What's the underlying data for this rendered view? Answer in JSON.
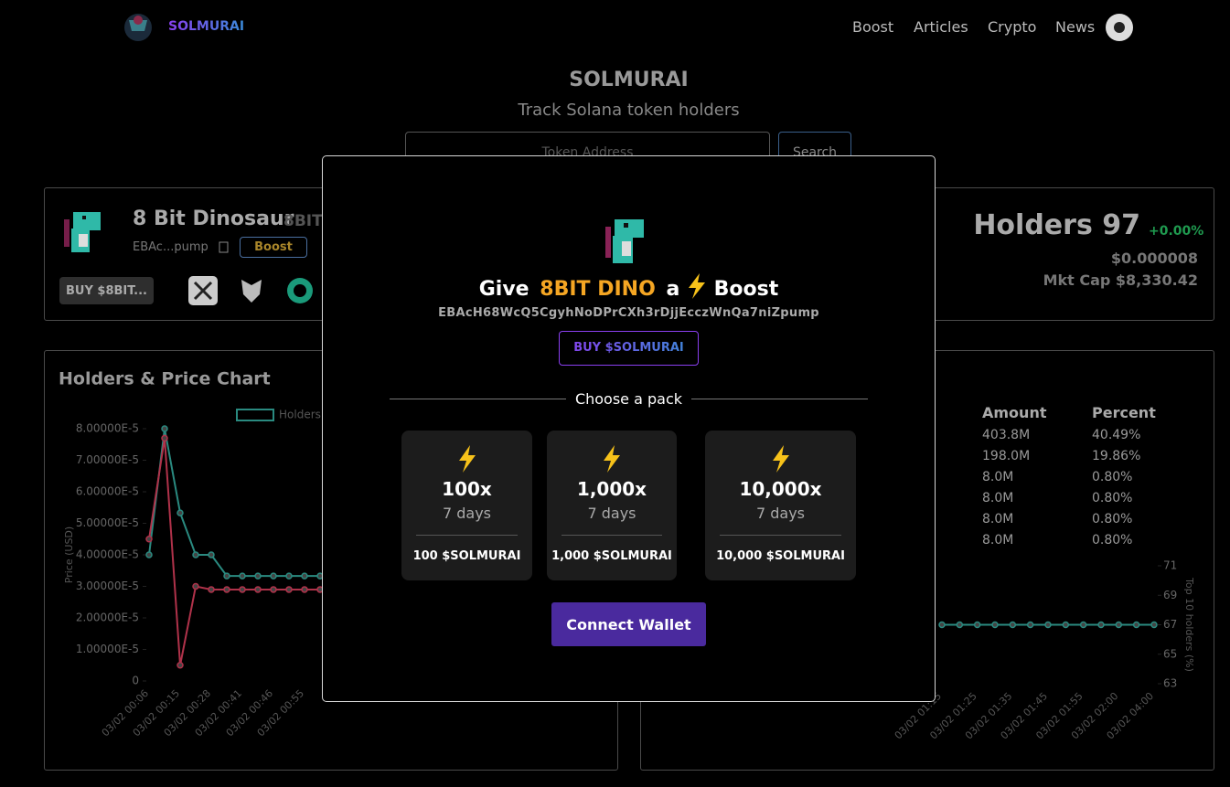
{
  "nav": {
    "brand": "SOLMURAI",
    "links": [
      "Boost",
      "Articles",
      "Crypto",
      "News"
    ]
  },
  "hero": {
    "title": "SOLMURAI",
    "subtitle": "Track Solana token holders",
    "input_placeholder": "Token Address",
    "search_button": "Search"
  },
  "token": {
    "name": "8 Bit Dinosaur",
    "symbol": "8BIT",
    "address": "EBAc...pump",
    "boost_button": "Boost",
    "buy_button": "BUY $8BIT..."
  },
  "stats": {
    "holders": "Holders 97",
    "change": "+0.00%",
    "price": "$0.000008",
    "market_cap": "Mkt Cap $8,330.42"
  },
  "holders_table": {
    "columns": [
      "Amount",
      "Percent"
    ],
    "rows": [
      [
        "403.8M",
        "40.49%"
      ],
      [
        "198.0M",
        "19.86%"
      ],
      [
        "8.0M",
        "0.80%"
      ],
      [
        "8.0M",
        "0.80%"
      ],
      [
        "8.0M",
        "0.80%"
      ],
      [
        "8.0M",
        "0.80%"
      ]
    ]
  },
  "chart_data": [
    {
      "type": "line",
      "title": "Holders & Price Chart",
      "y_label": "Price (USD)",
      "categories": [
        "03/02 00:06",
        null,
        "03/02 00:15",
        null,
        "03/02 00:28",
        null,
        "03/02 00:41",
        null,
        "03/02 00:46",
        null,
        "03/02 00:55",
        null
      ],
      "series": [
        {
          "name": "Holders",
          "color": "#2a8a80",
          "values": [
            4e-05,
            8e-05,
            5.33e-05,
            4e-05,
            4e-05,
            3.33e-05,
            3.33e-05,
            3.33e-05,
            3.33e-05,
            3.33e-05,
            3.33e-05,
            3.33e-05
          ]
        },
        {
          "color": "#b0324a",
          "values": [
            4.5e-05,
            7.7e-05,
            5e-06,
            3e-05,
            2.9e-05,
            2.9e-05,
            2.9e-05,
            2.9e-05,
            2.9e-05,
            2.9e-05,
            2.9e-05,
            2.9e-05
          ]
        }
      ],
      "ylim": [
        0,
        8e-05
      ],
      "yticks": [
        0,
        {
          "value": 1e-05,
          "label": "1.00000E-5"
        },
        {
          "value": 2e-05,
          "label": "2.00000E-5"
        },
        {
          "value": 3e-05,
          "label": "3.00000E-5"
        },
        {
          "value": 4e-05,
          "label": "4.00000E-5"
        },
        {
          "value": 5e-05,
          "label": "5.00000E-5"
        },
        {
          "value": 6e-05,
          "label": "6.00000E-5"
        },
        {
          "value": 7e-05,
          "label": "7.00000E-5"
        },
        {
          "value": 8e-05,
          "label": "8.00000E-5"
        }
      ]
    },
    {
      "type": "line",
      "y2_label": "Top 10 holders (%)",
      "categories": [
        "03/02 01:15",
        null,
        "03/02 01:25",
        null,
        "03/02 01:35",
        null,
        "03/02 01:45",
        null,
        "03/02 01:55",
        null,
        "03/02 02:00",
        null,
        "03/02 04:00"
      ],
      "series": [
        {
          "color": "#2a8a80",
          "axis": "y2",
          "values": [
            67,
            67,
            67,
            67,
            67,
            67,
            67,
            67,
            67,
            67,
            67,
            67,
            67
          ]
        }
      ],
      "y2lim": [
        63,
        71
      ],
      "y2ticks": [
        63,
        65,
        67,
        69,
        71
      ]
    }
  ],
  "modal": {
    "title": {
      "prefix": "Give",
      "token": "8BIT DINO",
      "middle": "a",
      "suffix": "Boost"
    },
    "address": "EBAcH68WcQ5CgyhNoDPrCXh3rDjjEcczWnQa7niZpump",
    "buy_button": "BUY $SOLMURAI",
    "section_label": "Choose a pack",
    "packs": [
      {
        "multiplier": "100x",
        "duration": "7 days",
        "price": "100 $SOLMURAI"
      },
      {
        "multiplier": "1,000x",
        "duration": "7 days",
        "price": "1,000 $SOLMURAI"
      },
      {
        "multiplier": "10,000x",
        "duration": "7 days",
        "price": "10,000 $SOLMURAI"
      }
    ],
    "connect_button": "Connect Wallet"
  }
}
